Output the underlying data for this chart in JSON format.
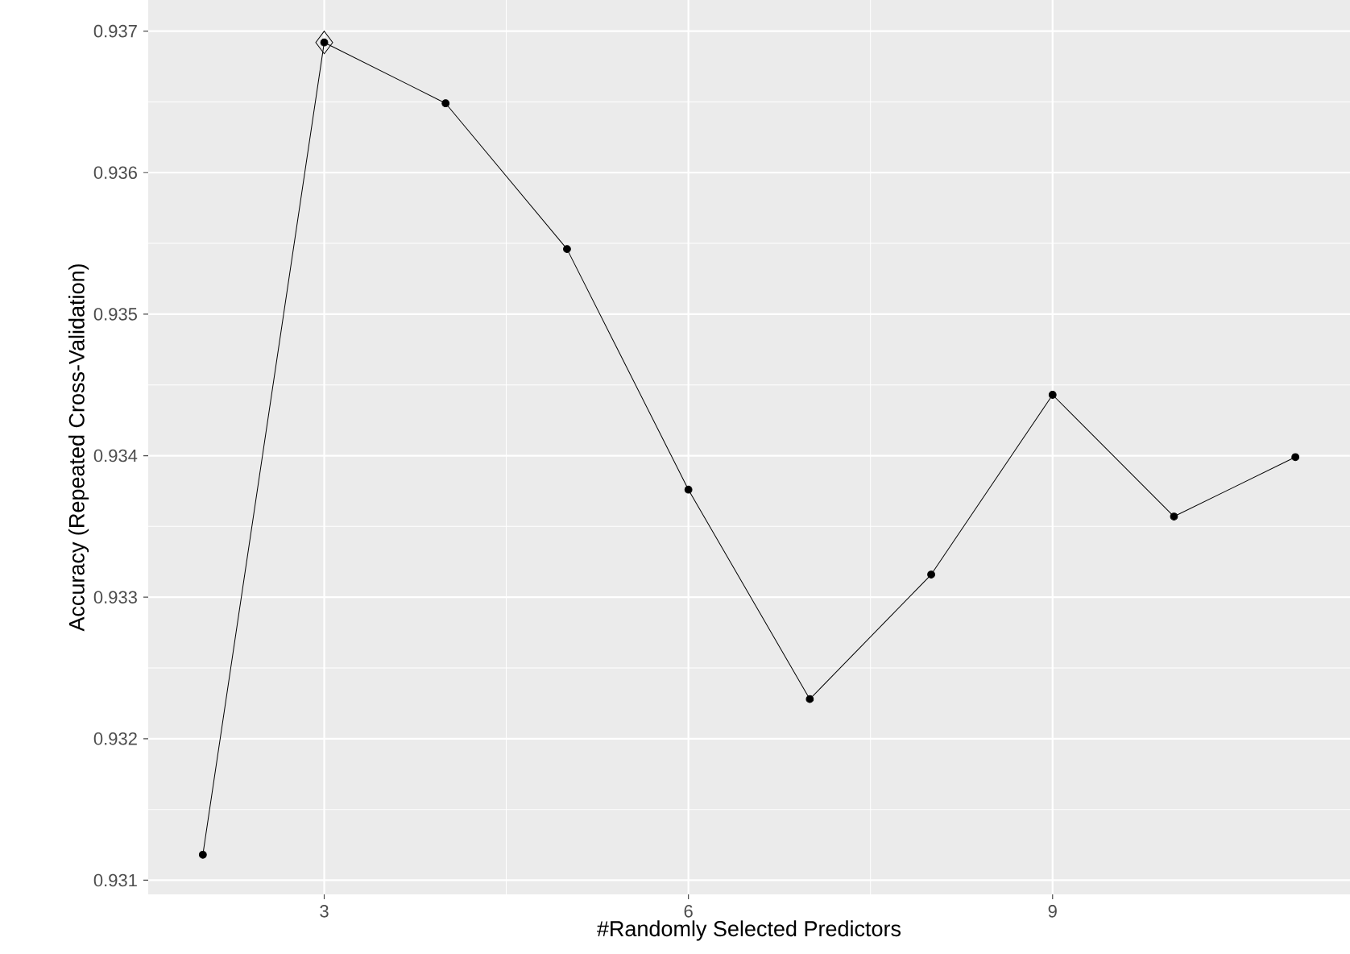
{
  "chart_data": {
    "type": "line",
    "xlabel": "#Randomly Selected Predictors",
    "ylabel": "Accuracy (Repeated Cross-Validation)",
    "x": [
      2,
      3,
      4,
      5,
      6,
      7,
      8,
      9,
      10,
      11
    ],
    "series": [
      {
        "color": "#000000",
        "marker": "circle",
        "values": [
          0.93118,
          0.93692,
          0.93649,
          0.93546,
          0.93376,
          0.93228,
          0.93316,
          0.93443,
          0.93357,
          0.93399
        ]
      },
      {
        "type": "scatter",
        "color": "#000000",
        "marker": "diamond",
        "x": [
          3
        ],
        "values": [
          0.93692
        ]
      }
    ],
    "xlim": [
      1.55,
      11.45
    ],
    "ylim": [
      0.9309,
      0.93722
    ],
    "xticks": [
      3,
      6,
      9
    ],
    "yticks": [
      0.931,
      0.932,
      0.933,
      0.934,
      0.935,
      0.936,
      0.937
    ],
    "grid": true
  }
}
